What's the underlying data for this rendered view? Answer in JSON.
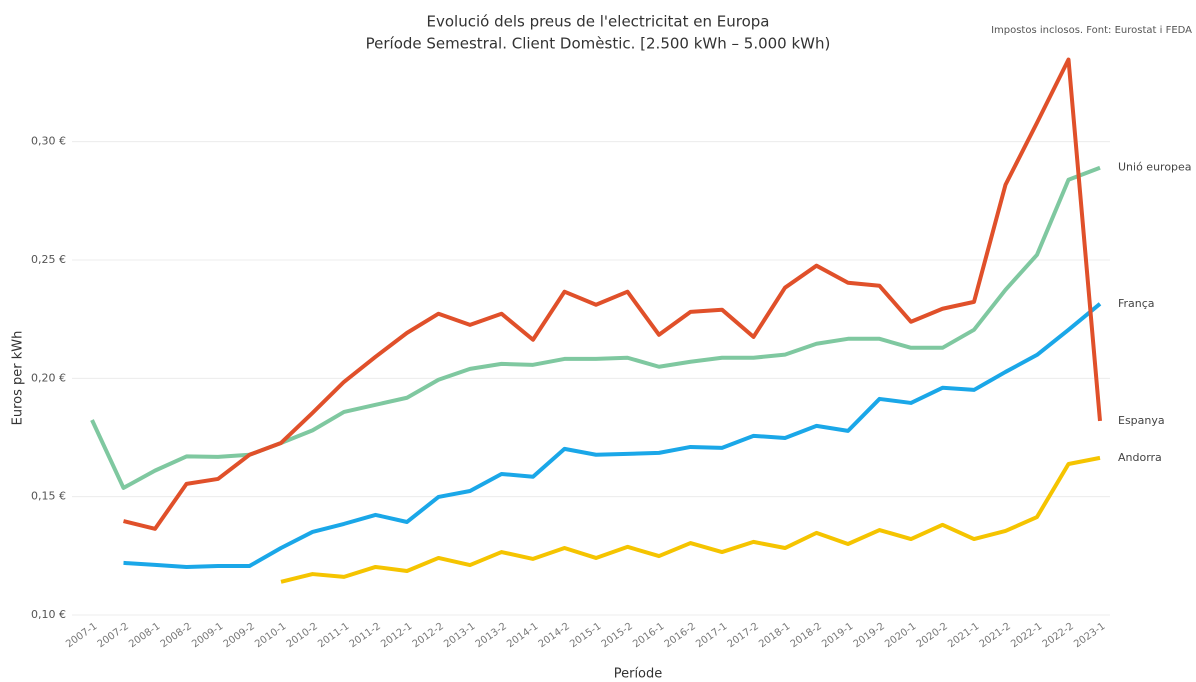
{
  "chart_data": {
    "type": "line",
    "title": "Evolució dels preus de l'electricitat en Europa",
    "subtitle": "Període Semestral. Client Domèstic. [2.500 kWh – 5.000 kWh)",
    "annotation": "Impostos inclosos. Font: Eurostat i FEDA",
    "x_label": "Període",
    "y_label": "Euros per kWh",
    "categories": [
      "2007-1",
      "2007-2",
      "2008-1",
      "2008-2",
      "2009-1",
      "2009-2",
      "2010-1",
      "2010-2",
      "2011-1",
      "2011-2",
      "2012-1",
      "2012-2",
      "2013-1",
      "2013-2",
      "2014-1",
      "2014-2",
      "2015-1",
      "2015-2",
      "2016-1",
      "2016-2",
      "2017-1",
      "2017-2",
      "2018-1",
      "2018-2",
      "2019-1",
      "2019-2",
      "2020-1",
      "2020-2",
      "2021-1",
      "2021-2",
      "2022-1",
      "2022-2",
      "2023-1"
    ],
    "series": [
      {
        "name": "Unió europea",
        "color": "#7fc8a0",
        "values": [
          0.1824,
          0.1537,
          0.161,
          0.167,
          0.1668,
          0.1677,
          0.1727,
          0.178,
          0.1858,
          0.1888,
          0.1918,
          0.1994,
          0.204,
          0.2061,
          0.2057,
          0.2082,
          0.2082,
          0.2087,
          0.2049,
          0.207,
          0.2087,
          0.2087,
          0.21,
          0.2146,
          0.2167,
          0.2167,
          0.2129,
          0.2129,
          0.2205,
          0.2374,
          0.2522,
          0.2839,
          0.289
        ]
      },
      {
        "name": "França",
        "color": "#1aa7e8",
        "values": [
          null,
          0.122,
          0.1212,
          0.1203,
          0.1207,
          0.1207,
          0.1283,
          0.1351,
          0.1385,
          0.1423,
          0.1393,
          0.1499,
          0.1524,
          0.1596,
          0.1584,
          0.1702,
          0.1677,
          0.1681,
          0.1685,
          0.171,
          0.1706,
          0.1757,
          0.1748,
          0.1799,
          0.1778,
          0.1913,
          0.1896,
          0.196,
          0.1951,
          0.2027,
          0.2099,
          0.2205,
          0.2315
        ]
      },
      {
        "name": "Espanya",
        "color": "#e0502a",
        "values": [
          null,
          0.1397,
          0.1364,
          0.1554,
          0.1575,
          0.1677,
          0.1727,
          0.1854,
          0.1985,
          0.2091,
          0.2192,
          0.2273,
          0.2226,
          0.2273,
          0.2163,
          0.2366,
          0.2311,
          0.2366,
          0.2184,
          0.2281,
          0.229,
          0.2175,
          0.2383,
          0.2476,
          0.2404,
          0.2391,
          0.2239,
          0.2294,
          0.2323,
          0.2818,
          0.308,
          0.3347,
          0.182
        ]
      },
      {
        "name": "Andorra",
        "color": "#f5c400",
        "values": [
          null,
          null,
          null,
          null,
          null,
          null,
          0.114,
          0.1173,
          0.1161,
          0.1203,
          0.1186,
          0.1241,
          0.1211,
          0.1266,
          0.1237,
          0.1283,
          0.1241,
          0.1288,
          0.1249,
          0.1304,
          0.1266,
          0.1309,
          0.1283,
          0.1347,
          0.13,
          0.1359,
          0.1321,
          0.1381,
          0.1321,
          0.1355,
          0.1414,
          0.1638,
          0.1664
        ]
      }
    ],
    "ylim": [
      0.1,
      0.34
    ],
    "yticks": [
      {
        "value": 0.1,
        "label": "0,10 €"
      },
      {
        "value": 0.15,
        "label": "0,15 €"
      },
      {
        "value": 0.2,
        "label": "0,20 €"
      },
      {
        "value": 0.25,
        "label": "0,25 €"
      },
      {
        "value": 0.3,
        "label": "0,30 €"
      }
    ],
    "grid": true
  }
}
